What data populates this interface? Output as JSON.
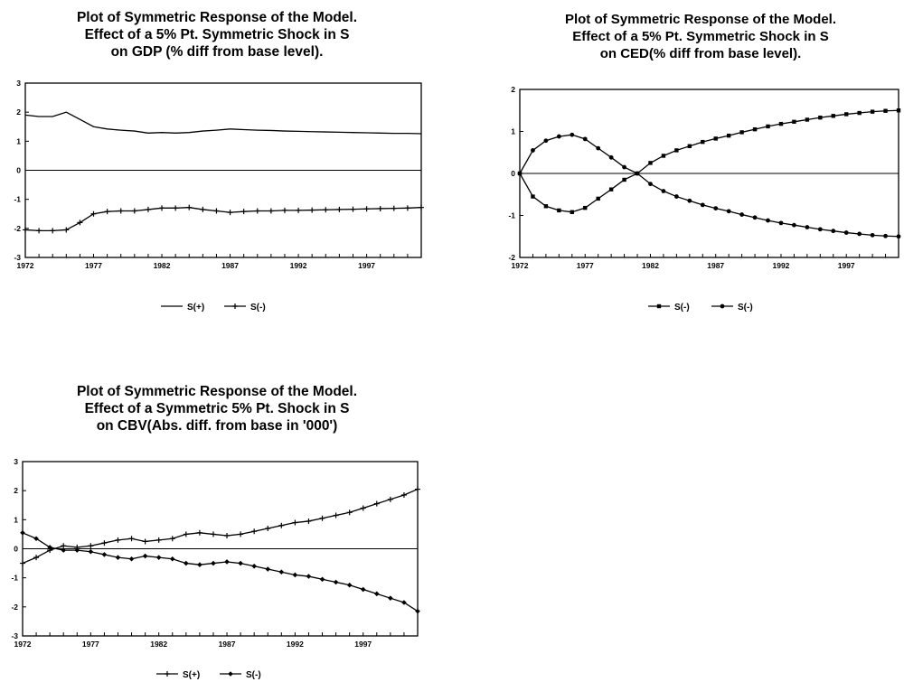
{
  "chart_data": [
    {
      "type": "line",
      "title": [
        "Plot of Symmetric Response of the Model.",
        "Effect of a 5% Pt. Symmetric Shock in S",
        "on GDP (% diff from base level)."
      ],
      "xlabel": "",
      "ylabel": "",
      "xlim": [
        1972,
        2001
      ],
      "ylim": [
        -3,
        3
      ],
      "x_ticks": [
        1972,
        1977,
        1982,
        1987,
        1992,
        1997
      ],
      "x_tick_labels": [
        "1972",
        "1977",
        "1982",
        "1987",
        "1992",
        "1997"
      ],
      "y_ticks": [
        -3,
        -2,
        -1,
        0,
        1,
        2,
        3
      ],
      "y_tick_labels": [
        "-3",
        "-2",
        "-1",
        "0",
        "1",
        "2",
        "3"
      ],
      "legend": "bottom",
      "series": [
        {
          "name": "S(+)",
          "marker": "none",
          "x": [
            1972,
            1973,
            1974,
            1975,
            1976,
            1977,
            1978,
            1979,
            1980,
            1981,
            1982,
            1983,
            1984,
            1985,
            1986,
            1987,
            1988,
            1989,
            1990,
            1991,
            1992,
            1993,
            1994,
            1995,
            1996,
            1997,
            1998,
            1999,
            2000,
            2001
          ],
          "values": [
            1.9,
            1.85,
            1.85,
            2.0,
            1.75,
            1.5,
            1.42,
            1.38,
            1.35,
            1.28,
            1.3,
            1.28,
            1.3,
            1.35,
            1.38,
            1.42,
            1.4,
            1.38,
            1.37,
            1.35,
            1.34,
            1.33,
            1.32,
            1.31,
            1.3,
            1.29,
            1.28,
            1.27,
            1.27,
            1.26
          ]
        },
        {
          "name": "S(-)",
          "marker": "plus",
          "x": [
            1972,
            1973,
            1974,
            1975,
            1976,
            1977,
            1978,
            1979,
            1980,
            1981,
            1982,
            1983,
            1984,
            1985,
            1986,
            1987,
            1988,
            1989,
            1990,
            1991,
            1992,
            1993,
            1994,
            1995,
            1996,
            1997,
            1998,
            1999,
            2000,
            2001
          ],
          "values": [
            -2.05,
            -2.08,
            -2.08,
            -2.05,
            -1.8,
            -1.5,
            -1.42,
            -1.4,
            -1.4,
            -1.35,
            -1.3,
            -1.3,
            -1.28,
            -1.35,
            -1.4,
            -1.45,
            -1.42,
            -1.4,
            -1.4,
            -1.38,
            -1.38,
            -1.37,
            -1.36,
            -1.35,
            -1.34,
            -1.33,
            -1.32,
            -1.31,
            -1.3,
            -1.28
          ]
        }
      ]
    },
    {
      "type": "line",
      "title": [
        "Plot of Symmetric Response of the Model.",
        "Effect of a 5% Pt. Symmetric Shock in S",
        "on CED(% diff from base level)."
      ],
      "xlabel": "",
      "ylabel": "",
      "xlim": [
        1972,
        2001
      ],
      "ylim": [
        -2,
        2
      ],
      "x_ticks": [
        1972,
        1977,
        1982,
        1987,
        1992,
        1997
      ],
      "x_tick_labels": [
        "1972",
        "1977",
        "1982",
        "1987",
        "1992",
        "1997"
      ],
      "y_ticks": [
        -2,
        -1,
        0,
        1,
        2
      ],
      "y_tick_labels": [
        "-2",
        "-1",
        "0",
        "1",
        "2"
      ],
      "legend": "bottom",
      "series": [
        {
          "name": "S(-)",
          "marker": "square",
          "x": [
            1972,
            1973,
            1974,
            1975,
            1976,
            1977,
            1978,
            1979,
            1980,
            1981,
            1982,
            1983,
            1984,
            1985,
            1986,
            1987,
            1988,
            1989,
            1990,
            1991,
            1992,
            1993,
            1994,
            1995,
            1996,
            1997,
            1998,
            1999,
            2000,
            2001
          ],
          "values": [
            0,
            -0.55,
            -0.78,
            -0.88,
            -0.92,
            -0.82,
            -0.6,
            -0.38,
            -0.15,
            0.0,
            0.25,
            0.42,
            0.55,
            0.65,
            0.75,
            0.83,
            0.9,
            0.98,
            1.05,
            1.12,
            1.18,
            1.23,
            1.28,
            1.33,
            1.37,
            1.41,
            1.44,
            1.47,
            1.49,
            1.5
          ]
        },
        {
          "name": "S(-)",
          "marker": "circle",
          "x": [
            1972,
            1973,
            1974,
            1975,
            1976,
            1977,
            1978,
            1979,
            1980,
            1981,
            1982,
            1983,
            1984,
            1985,
            1986,
            1987,
            1988,
            1989,
            1990,
            1991,
            1992,
            1993,
            1994,
            1995,
            1996,
            1997,
            1998,
            1999,
            2000,
            2001
          ],
          "values": [
            0,
            0.55,
            0.78,
            0.88,
            0.92,
            0.82,
            0.6,
            0.38,
            0.15,
            0.0,
            -0.25,
            -0.42,
            -0.55,
            -0.65,
            -0.75,
            -0.83,
            -0.9,
            -0.98,
            -1.05,
            -1.12,
            -1.18,
            -1.23,
            -1.28,
            -1.33,
            -1.37,
            -1.41,
            -1.44,
            -1.47,
            -1.49,
            -1.5
          ]
        }
      ]
    },
    {
      "type": "line",
      "title": [
        "Plot of Symmetric Response of the Model.",
        "Effect of a Symmetric 5% Pt. Shock in S",
        "on CBV(Abs. diff. from base in '000')"
      ],
      "xlabel": "",
      "ylabel": "",
      "xlim": [
        1972,
        2001
      ],
      "ylim": [
        -3,
        3
      ],
      "x_ticks": [
        1972,
        1977,
        1982,
        1987,
        1992,
        1997
      ],
      "x_tick_labels": [
        "1972",
        "1977",
        "1982",
        "1987",
        "1992",
        "1997"
      ],
      "y_ticks": [
        -3,
        -2,
        -1,
        0,
        1,
        2,
        3
      ],
      "y_tick_labels": [
        "-3",
        "-2",
        "-1",
        "0",
        "1",
        "2",
        "3"
      ],
      "legend": "bottom",
      "series": [
        {
          "name": "S(+)",
          "marker": "plus",
          "x": [
            1972,
            1973,
            1974,
            1975,
            1976,
            1977,
            1978,
            1979,
            1980,
            1981,
            1982,
            1983,
            1984,
            1985,
            1986,
            1987,
            1988,
            1989,
            1990,
            1991,
            1992,
            1993,
            1994,
            1995,
            1996,
            1997,
            1998,
            1999,
            2000,
            2001
          ],
          "values": [
            -0.5,
            -0.3,
            -0.05,
            0.1,
            0.05,
            0.1,
            0.2,
            0.3,
            0.35,
            0.25,
            0.3,
            0.35,
            0.5,
            0.55,
            0.5,
            0.45,
            0.5,
            0.6,
            0.7,
            0.8,
            0.9,
            0.95,
            1.05,
            1.15,
            1.25,
            1.4,
            1.55,
            1.7,
            1.85,
            2.05
          ]
        },
        {
          "name": "S(-)",
          "marker": "diamond",
          "x": [
            1972,
            1973,
            1974,
            1975,
            1976,
            1977,
            1978,
            1979,
            1980,
            1981,
            1982,
            1983,
            1984,
            1985,
            1986,
            1987,
            1988,
            1989,
            1990,
            1991,
            1992,
            1993,
            1994,
            1995,
            1996,
            1997,
            1998,
            1999,
            2000,
            2001
          ],
          "values": [
            0.55,
            0.35,
            0.05,
            -0.05,
            -0.05,
            -0.1,
            -0.2,
            -0.3,
            -0.35,
            -0.25,
            -0.3,
            -0.35,
            -0.5,
            -0.55,
            -0.5,
            -0.45,
            -0.5,
            -0.6,
            -0.7,
            -0.8,
            -0.9,
            -0.95,
            -1.05,
            -1.15,
            -1.25,
            -1.4,
            -1.55,
            -1.7,
            -1.85,
            -2.15
          ]
        }
      ]
    }
  ]
}
